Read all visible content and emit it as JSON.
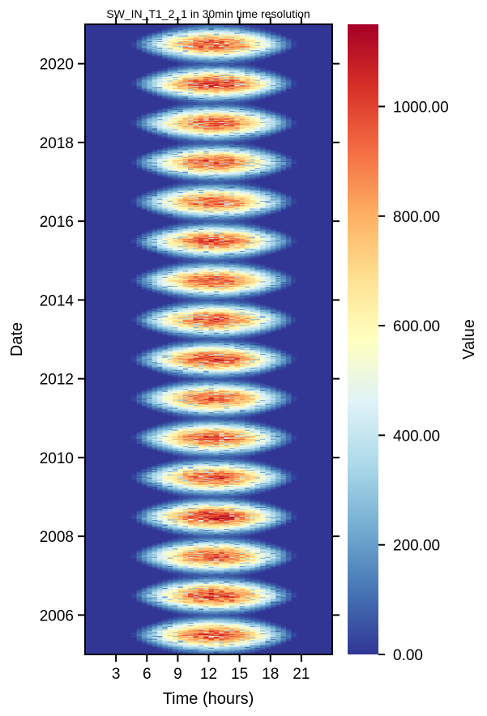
{
  "chart_data": {
    "type": "heatmap",
    "title": "SW_IN_T1_2_1 in 30min time resolution",
    "xlabel": "Time (hours)",
    "ylabel": "Date",
    "colorbar_label": "Value",
    "x_range": [
      0,
      24
    ],
    "x_ticks": [
      3,
      6,
      9,
      12,
      15,
      18,
      21
    ],
    "x_tick_labels": [
      "3",
      "6",
      "9",
      "12",
      "15",
      "18",
      "21"
    ],
    "y_range": [
      2005.0,
      2021.0
    ],
    "y_ticks": [
      2006,
      2008,
      2010,
      2012,
      2014,
      2016,
      2018,
      2020
    ],
    "y_tick_labels": [
      "2006",
      "2008",
      "2010",
      "2012",
      "2014",
      "2016",
      "2018",
      "2020"
    ],
    "color_range": [
      0,
      1150
    ],
    "colorbar_ticks": [
      0,
      200,
      400,
      600,
      800,
      1000
    ],
    "colorbar_tick_labels": [
      "0.00",
      "200.00",
      "400.00",
      "600.00",
      "800.00",
      "1000.00"
    ],
    "colormap": "RdYlBu_r",
    "colormap_stops": [
      "#313695",
      "#4575b4",
      "#74add1",
      "#abd9e9",
      "#e0f3f8",
      "#ffffbf",
      "#fee090",
      "#fdae61",
      "#f46d43",
      "#d73027",
      "#a50026"
    ],
    "seasonal_peaks": [
      {
        "year": 2005,
        "peak": 1010
      },
      {
        "year": 2006,
        "peak": 1050
      },
      {
        "year": 2007,
        "peak": 1000
      },
      {
        "year": 2008,
        "peak": 1080
      },
      {
        "year": 2009,
        "peak": 1000
      },
      {
        "year": 2010,
        "peak": 1000
      },
      {
        "year": 2011,
        "peak": 990
      },
      {
        "year": 2012,
        "peak": 1030
      },
      {
        "year": 2013,
        "peak": 1000
      },
      {
        "year": 2014,
        "peak": 990
      },
      {
        "year": 2015,
        "peak": 1000
      },
      {
        "year": 2016,
        "peak": 970
      },
      {
        "year": 2017,
        "peak": 990
      },
      {
        "year": 2018,
        "peak": 1000
      },
      {
        "year": 2019,
        "peak": 1050
      },
      {
        "year": 2020,
        "peak": 1000
      }
    ],
    "summer_day_length_hours": 16,
    "winter_day_length_hours": 8,
    "solar_noon_hour": 12.5,
    "grid": false,
    "legend": "colorbar-right"
  }
}
